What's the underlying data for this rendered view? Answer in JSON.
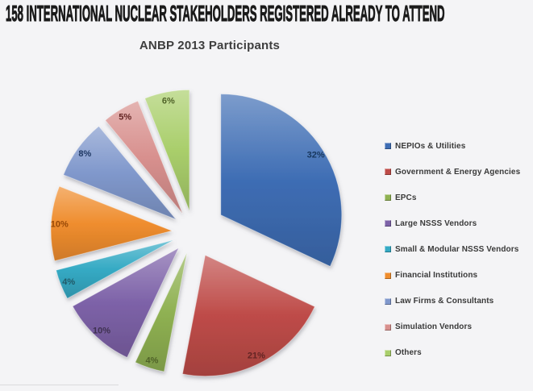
{
  "page": {
    "background": "#F4F4F6",
    "header_title": "158 INTERNATIONAL NUCLEAR STAKEHOLDERS REGISTERED ALREADY TO ATTEND"
  },
  "chart_data": {
    "type": "pie",
    "title": "ANBP 2013 Participants",
    "value_format": "percent",
    "start_angle_deg": 0,
    "direction": "clockwise",
    "exploded": true,
    "legend_position": "right",
    "slices": [
      {
        "label": "NEPIOs & Utilities",
        "value": 32,
        "data_label": "32%",
        "color": "#3E6DB4",
        "data_label_color": "#17375E"
      },
      {
        "label": "Government & Energy Agencies",
        "value": 21,
        "data_label": "21%",
        "color": "#BE4B48",
        "data_label_color": "#632423"
      },
      {
        "label": "EPCs",
        "value": 4,
        "data_label": "4%",
        "color": "#8FB152",
        "data_label_color": "#4F6228"
      },
      {
        "label": "Large NSSS Vendors",
        "value": 10,
        "data_label": "10%",
        "color": "#7D62A8",
        "data_label_color": "#3F3151"
      },
      {
        "label": "Small & Modular NSSS Vendors",
        "value": 4,
        "data_label": "4%",
        "color": "#35AAC4",
        "data_label_color": "#215967"
      },
      {
        "label": "Financial Institutions",
        "value": 10,
        "data_label": "10%",
        "color": "#EF8D2E",
        "data_label_color": "#974807"
      },
      {
        "label": "Law Firms & Consultants",
        "value": 8,
        "data_label": "8%",
        "color": "#8098CC",
        "data_label_color": "#1F3864"
      },
      {
        "label": "Simulation Vendors",
        "value": 5,
        "data_label": "5%",
        "color": "#D8908E",
        "data_label_color": "#632423"
      },
      {
        "label": "Others",
        "value": 6,
        "data_label": "6%",
        "color": "#A9CE6B",
        "data_label_color": "#4F6228"
      }
    ]
  }
}
